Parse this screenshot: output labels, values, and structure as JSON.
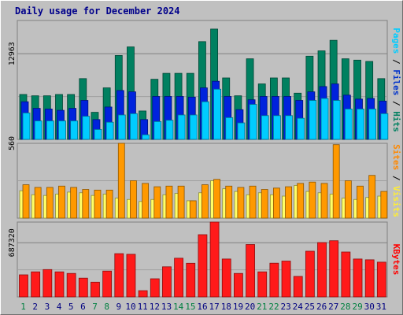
{
  "chart_data": {
    "type": "bar",
    "title": "Daily usage for December 2024",
    "categories": [
      "1",
      "2",
      "3",
      "4",
      "5",
      "6",
      "7",
      "8",
      "9",
      "10",
      "11",
      "12",
      "13",
      "14",
      "15",
      "16",
      "17",
      "18",
      "19",
      "20",
      "21",
      "22",
      "23",
      "24",
      "25",
      "26",
      "27",
      "28",
      "29",
      "30",
      "31"
    ],
    "weekend_days": [
      "1",
      "7",
      "8",
      "14",
      "15",
      "21",
      "22",
      "28",
      "29"
    ],
    "panels": [
      {
        "id": "top",
        "scale_label": "12963",
        "ylim": [
          0,
          18000
        ],
        "y_tick": 12963,
        "axis_labels": [
          {
            "text": "Pages",
            "color": "#00ccff"
          },
          {
            "text": "Files",
            "color": "#0033cc"
          },
          {
            "text": "Hits",
            "color": "#008060"
          }
        ],
        "series": [
          {
            "name": "Hits",
            "color": "#008060",
            "values": [
              6800,
              6600,
              6600,
              6800,
              6800,
              9200,
              4100,
              7800,
              12700,
              14000,
              4300,
              9100,
              10000,
              10000,
              10000,
              14800,
              16700,
              9300,
              6600,
              12200,
              8400,
              9300,
              9300,
              7000,
              12600,
              13400,
              15000,
              12200,
              12000,
              11800,
              9200
            ]
          },
          {
            "name": "Files",
            "color": "#0022dd",
            "values": [
              5700,
              4700,
              4600,
              4400,
              4700,
              5900,
              3000,
              4900,
              7400,
              7200,
              3000,
              6500,
              6500,
              6500,
              6400,
              7800,
              8800,
              6500,
              4500,
              6000,
              6500,
              6500,
              6500,
              5900,
              7200,
              8000,
              8400,
              6700,
              6100,
              6200,
              5800
            ]
          },
          {
            "name": "Pages",
            "color": "#00ccff",
            "values": [
              4000,
              2800,
              2800,
              2800,
              2800,
              3500,
              1500,
              2600,
              3700,
              3900,
              700,
              2700,
              2900,
              3700,
              3700,
              5700,
              7600,
              3300,
              2500,
              5300,
              3600,
              3600,
              3600,
              3200,
              5900,
              6200,
              5900,
              4600,
              4600,
              4600,
              3900
            ]
          }
        ]
      },
      {
        "id": "middle",
        "scale_label": "560",
        "ylim": [
          0,
          560
        ],
        "y_tick": 560,
        "axis_labels": [
          {
            "text": "Sites",
            "color": "#ff8800"
          },
          {
            "text": "Visits",
            "color": "#ffee33"
          }
        ],
        "series": [
          {
            "name": "Visits",
            "color": "#ffff66",
            "values": [
              205,
              175,
              170,
              180,
              195,
              190,
              170,
              180,
              150,
              140,
              125,
              140,
              175,
              185,
              130,
              190,
              280,
              220,
              200,
              175,
              190,
              175,
              165,
              245,
              200,
              190,
              180,
              150,
              140,
              155,
              165
            ]
          },
          {
            "name": "Sites",
            "color": "#ff9900",
            "values": [
              250,
              230,
              230,
              240,
              230,
              215,
              210,
              210,
              560,
              280,
              260,
              235,
              240,
              240,
              130,
              250,
              290,
              240,
              230,
              240,
              215,
              225,
              235,
              260,
              270,
              260,
              550,
              280,
              240,
              320,
              200
            ]
          }
        ]
      },
      {
        "id": "bottom",
        "scale_label": "687320",
        "ylim": [
          0,
          950000
        ],
        "y_tick": 687320,
        "axis_labels": [
          {
            "text": "KBytes",
            "color": "#ff0000"
          }
        ],
        "series": [
          {
            "name": "KBytes",
            "color": "#ff1a1a",
            "values": [
              280000,
              318000,
              347000,
              318000,
              298000,
              238000,
              187000,
              328000,
              549000,
              541000,
              79000,
              230000,
              382000,
              491000,
              427000,
              790000,
              990000,
              481000,
              298000,
              665000,
              318000,
              428000,
              455000,
              260000,
              580000,
              690000,
              713000,
              570000,
              481000,
              471000,
              441000
            ]
          }
        ]
      }
    ],
    "colors": {
      "background": "#c0c0c0",
      "title": "#00008b",
      "day_weekday": "#000080",
      "day_weekend": "#008040",
      "gridline": "#808080",
      "separator": "#808080"
    }
  }
}
